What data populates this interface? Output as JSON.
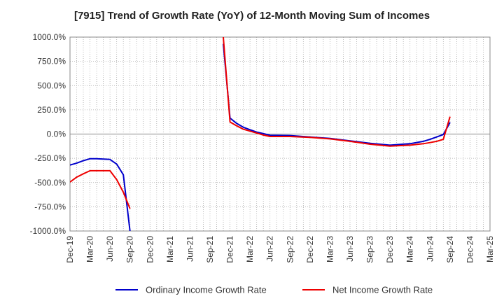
{
  "chart_data": {
    "type": "line",
    "title": "[7915]  Trend of Growth Rate (YoY) of 12-Month Moving Sum of Incomes",
    "xlabel": "",
    "ylabel": "",
    "ylim": [
      -1000,
      1000
    ],
    "y_ticks": [
      1000,
      750,
      500,
      250,
      0,
      -250,
      -500,
      -750,
      -1000
    ],
    "y_tick_labels": [
      "1000.0%",
      "750.0%",
      "500.0%",
      "250.0%",
      "0.0%",
      "-250.0%",
      "-500.0%",
      "-750.0%",
      "-1000.0%"
    ],
    "x_tick_labels": [
      "Dec-19",
      "Mar-20",
      "Jun-20",
      "Sep-20",
      "Dec-20",
      "Mar-21",
      "Jun-21",
      "Sep-21",
      "Dec-21",
      "Mar-22",
      "Jun-22",
      "Sep-22",
      "Dec-22",
      "Mar-23",
      "Jun-23",
      "Sep-23",
      "Dec-23",
      "Mar-24",
      "Jun-24",
      "Sep-24",
      "Dec-24",
      "Mar-25"
    ],
    "grid": true,
    "legend_position": "bottom",
    "series": [
      {
        "name": "Ordinary Income Growth Rate",
        "color": "#0000cc",
        "points": [
          [
            "Dec-19",
            -320
          ],
          [
            "Jan-20",
            -300
          ],
          [
            "Feb-20",
            -275
          ],
          [
            "Mar-20",
            -255
          ],
          [
            "Apr-20",
            -255
          ],
          [
            "May-20",
            -258
          ],
          [
            "Jun-20",
            -262
          ],
          [
            "Jul-20",
            -310
          ],
          [
            "Aug-20",
            -420
          ],
          [
            "Sep-20",
            -1000
          ],
          null,
          [
            "Nov-21",
            930
          ],
          [
            "Dec-21",
            165
          ],
          [
            "Jan-22",
            110
          ],
          [
            "Feb-22",
            70
          ],
          [
            "Mar-22",
            45
          ],
          [
            "Apr-22",
            20
          ],
          [
            "May-22",
            5
          ],
          [
            "Jun-22",
            -12
          ],
          [
            "Sep-22",
            -15
          ],
          [
            "Dec-22",
            -30
          ],
          [
            "Mar-23",
            -45
          ],
          [
            "Jun-23",
            -70
          ],
          [
            "Sep-23",
            -95
          ],
          [
            "Dec-23",
            -115
          ],
          [
            "Mar-24",
            -100
          ],
          [
            "May-24",
            -75
          ],
          [
            "Jun-24",
            -55
          ],
          [
            "Jul-24",
            -30
          ],
          [
            "Aug-24",
            -5
          ],
          [
            "Sep-24",
            120
          ]
        ]
      },
      {
        "name": "Net Income Growth Rate",
        "color": "#ee0000",
        "points": [
          [
            "Dec-19",
            -495
          ],
          [
            "Jan-20",
            -445
          ],
          [
            "Feb-20",
            -410
          ],
          [
            "Mar-20",
            -378
          ],
          [
            "Apr-20",
            -378
          ],
          [
            "May-20",
            -378
          ],
          [
            "Jun-20",
            -378
          ],
          [
            "Jul-20",
            -470
          ],
          [
            "Aug-20",
            -600
          ],
          [
            "Sep-20",
            -770
          ],
          null,
          [
            "Nov-21",
            1000
          ],
          [
            "Dec-21",
            125
          ],
          [
            "Jan-22",
            85
          ],
          [
            "Feb-22",
            50
          ],
          [
            "Mar-22",
            30
          ],
          [
            "Apr-22",
            10
          ],
          [
            "May-22",
            -10
          ],
          [
            "Jun-22",
            -25
          ],
          [
            "Sep-22",
            -25
          ],
          [
            "Dec-22",
            -35
          ],
          [
            "Mar-23",
            -50
          ],
          [
            "Jun-23",
            -75
          ],
          [
            "Sep-23",
            -105
          ],
          [
            "Dec-23",
            -125
          ],
          [
            "Mar-24",
            -115
          ],
          [
            "May-24",
            -100
          ],
          [
            "Jun-24",
            -88
          ],
          [
            "Jul-24",
            -75
          ],
          [
            "Aug-24",
            -55
          ],
          [
            "Sep-24",
            180
          ]
        ]
      }
    ]
  }
}
